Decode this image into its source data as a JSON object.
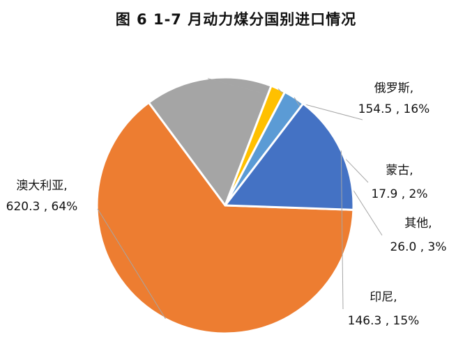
{
  "chart_data": {
    "type": "pie",
    "title": "图 6 1-7 月动力煤分国别进口情况",
    "slices": [
      {
        "name": "澳大利亚",
        "value": 620.3,
        "percent": "64%",
        "color": "#ED7D31",
        "value_label": "620.3",
        "pct_label": "64%"
      },
      {
        "name": "俄罗斯",
        "value": 154.5,
        "percent": "16%",
        "color": "#A5A5A5",
        "value_label": "154.5",
        "pct_label": "16%"
      },
      {
        "name": "蒙古",
        "value": 17.9,
        "percent": "2%",
        "color": "#FFC000",
        "value_label": "17.9",
        "pct_label": "2%"
      },
      {
        "name": "其他",
        "value": 26.0,
        "percent": "3%",
        "color": "#5B9BD5",
        "value_label": "26.0",
        "pct_label": "3%"
      },
      {
        "name": "印尼",
        "value": 146.3,
        "percent": "15%",
        "color": "#4472C4",
        "value_label": "146.3",
        "pct_label": "15%"
      }
    ]
  }
}
